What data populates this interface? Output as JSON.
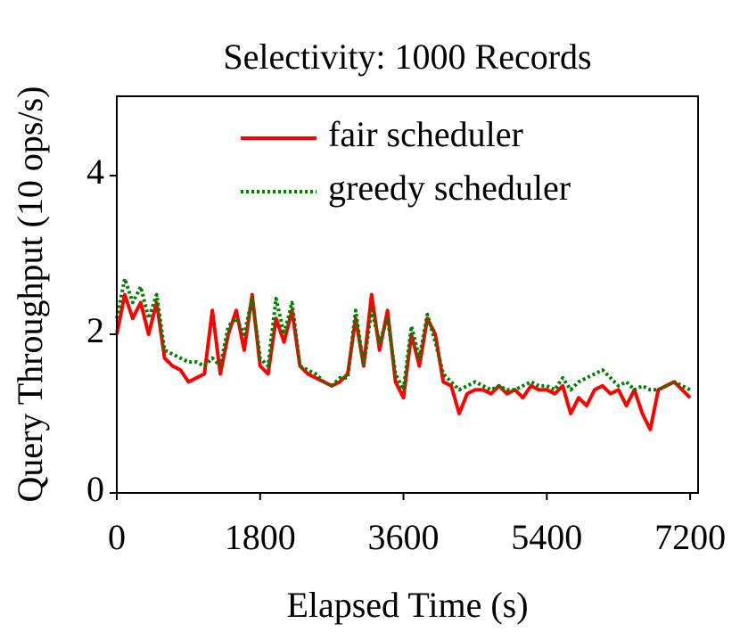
{
  "chart_data": {
    "type": "line",
    "title": "Selectivity: 1000 Records",
    "x_label": "Elapsed Time (s)",
    "y_label": "Query Throughput (10 ops/s)",
    "xlim": [
      0,
      7300
    ],
    "ylim": [
      0,
      5
    ],
    "xticks": [
      0,
      1800,
      3600,
      5400,
      7200
    ],
    "yticks": [
      0,
      2,
      4
    ],
    "legend": "upper right",
    "x": [
      0,
      100,
      200,
      300,
      400,
      500,
      600,
      700,
      800,
      900,
      1000,
      1100,
      1200,
      1300,
      1400,
      1500,
      1600,
      1700,
      1800,
      1900,
      2000,
      2100,
      2200,
      2300,
      2400,
      2500,
      2600,
      2700,
      2800,
      2900,
      3000,
      3100,
      3200,
      3300,
      3400,
      3500,
      3600,
      3700,
      3800,
      3900,
      4000,
      4100,
      4200,
      4300,
      4400,
      4500,
      4600,
      4700,
      4800,
      4900,
      5000,
      5100,
      5200,
      5300,
      5400,
      5500,
      5600,
      5700,
      5800,
      5900,
      6000,
      6100,
      6200,
      6300,
      6400,
      6500,
      6600,
      6700,
      6800,
      6900,
      7000,
      7100,
      7200
    ],
    "series": [
      {
        "name": "fair scheduler",
        "color": "#ff0000",
        "style": "solid",
        "values": [
          2.0,
          2.5,
          2.2,
          2.4,
          2.0,
          2.4,
          1.7,
          1.6,
          1.55,
          1.4,
          1.45,
          1.5,
          2.3,
          1.5,
          2.0,
          2.3,
          1.8,
          2.5,
          1.6,
          1.5,
          2.2,
          1.9,
          2.3,
          1.6,
          1.5,
          1.45,
          1.4,
          1.35,
          1.4,
          1.5,
          2.2,
          1.6,
          2.5,
          1.8,
          2.3,
          1.4,
          1.2,
          2.0,
          1.6,
          2.2,
          2.0,
          1.4,
          1.35,
          1.0,
          1.25,
          1.3,
          1.3,
          1.25,
          1.35,
          1.25,
          1.3,
          1.2,
          1.35,
          1.3,
          1.3,
          1.25,
          1.35,
          1.0,
          1.2,
          1.1,
          1.3,
          1.35,
          1.25,
          1.3,
          1.1,
          1.3,
          1.0,
          0.8,
          1.3,
          1.35,
          1.4,
          1.3,
          1.2
        ]
      },
      {
        "name": "greedy scheduler",
        "color": "#008000",
        "style": "dotted",
        "values": [
          2.2,
          2.7,
          2.4,
          2.6,
          2.2,
          2.5,
          1.8,
          1.75,
          1.7,
          1.65,
          1.65,
          1.6,
          1.7,
          1.6,
          2.1,
          2.2,
          2.0,
          2.45,
          1.7,
          1.6,
          2.45,
          2.0,
          2.4,
          1.6,
          1.55,
          1.5,
          1.4,
          1.35,
          1.45,
          1.45,
          2.3,
          1.6,
          2.3,
          1.9,
          2.2,
          1.5,
          1.3,
          2.1,
          1.7,
          2.25,
          1.9,
          1.5,
          1.4,
          1.3,
          1.35,
          1.4,
          1.35,
          1.3,
          1.35,
          1.3,
          1.3,
          1.35,
          1.4,
          1.35,
          1.35,
          1.3,
          1.45,
          1.3,
          1.4,
          1.45,
          1.5,
          1.55,
          1.45,
          1.35,
          1.4,
          1.3,
          1.35,
          1.3,
          1.3,
          1.35,
          1.4,
          1.35,
          1.3
        ]
      }
    ]
  }
}
